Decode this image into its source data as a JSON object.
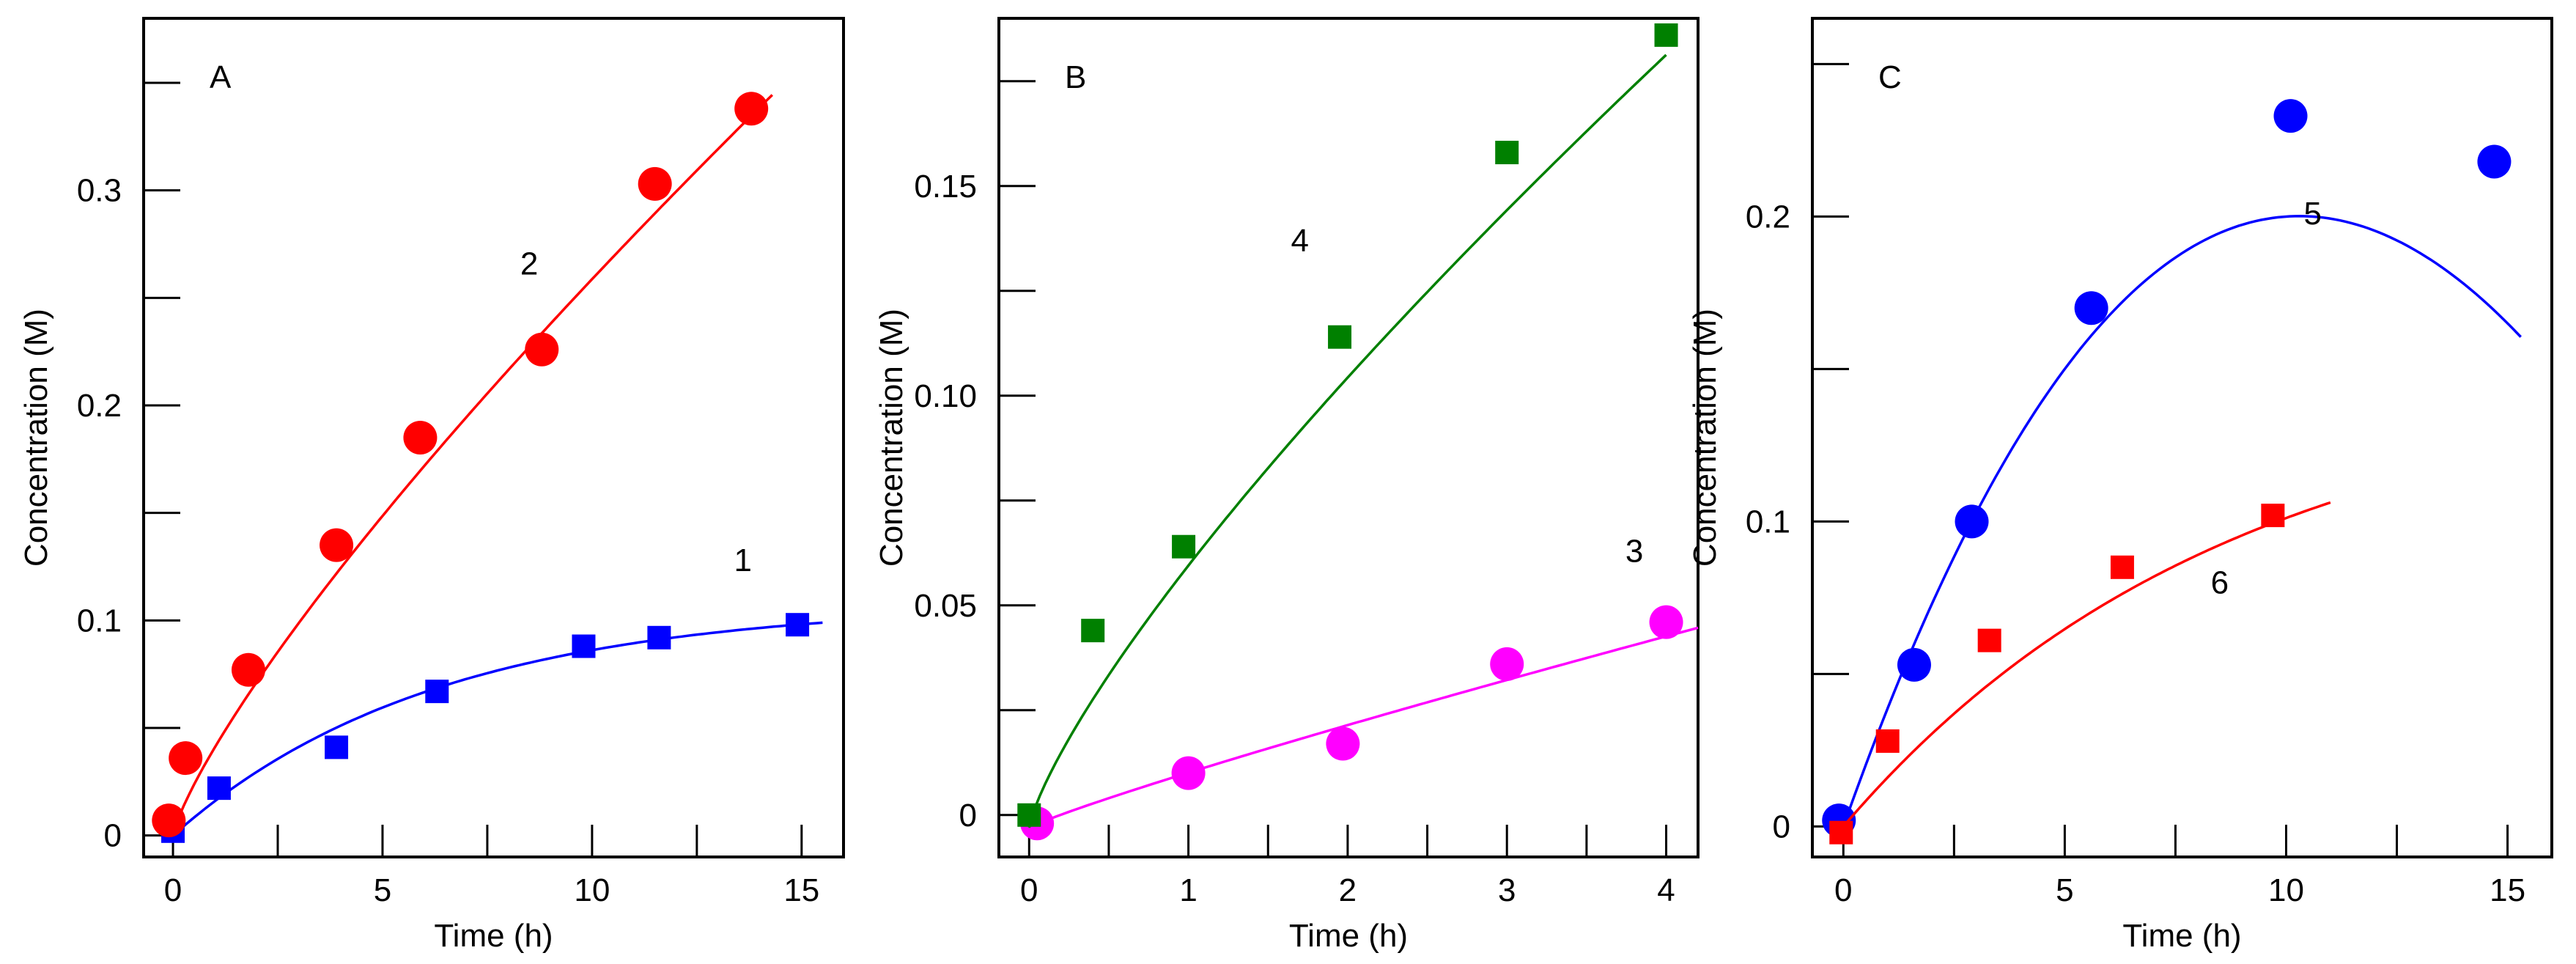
{
  "chart_data": [
    {
      "type": "scatter",
      "panel": "A",
      "xlabel": "Time (h)",
      "ylabel": "Concentration  (M)",
      "xlim": [
        -0.7,
        16
      ],
      "ylim": [
        -0.01,
        0.38
      ],
      "xticks": [
        0,
        5,
        10,
        15
      ],
      "xtick_labels": [
        "0",
        "5",
        "10",
        "15"
      ],
      "yticks": [
        0,
        0.1,
        0.2,
        0.3
      ],
      "ytick_labels": [
        "0",
        "0.1",
        "0.2",
        "0.3"
      ],
      "series": [
        {
          "name": "1",
          "label_at": [
            13.6,
            0.128
          ],
          "color": "#0000ff",
          "marker": "square",
          "x": [
            0.0,
            1.1,
            3.9,
            6.3,
            9.8,
            11.6,
            14.9
          ],
          "y": [
            0.002,
            0.022,
            0.041,
            0.067,
            0.088,
            0.092,
            0.098
          ],
          "fit": {
            "model": "saturation",
            "params": [
              0.108,
              0.16
            ],
            "range": [
              0,
              15.5
            ]
          }
        },
        {
          "name": "2",
          "label_at": [
            8.5,
            0.266
          ],
          "color": "#ff0000",
          "marker": "circle",
          "x": [
            -0.1,
            0.3,
            1.8,
            3.9,
            5.9,
            8.8,
            11.5,
            13.8
          ],
          "y": [
            0.007,
            0.036,
            0.077,
            0.135,
            0.185,
            0.226,
            0.303,
            0.338
          ],
          "fit": {
            "model": "power",
            "params": [
              0.0,
              0.041,
              0.8
            ],
            "range": [
              -0.1,
              14.3
            ]
          }
        }
      ]
    },
    {
      "type": "scatter",
      "panel": "B",
      "xlabel": "Time (h)",
      "ylabel": "Concentration  (M)",
      "xlim": [
        -0.19,
        4.2
      ],
      "ylim": [
        -0.01,
        0.19
      ],
      "xticks": [
        0,
        1,
        2,
        3,
        4
      ],
      "xtick_labels": [
        "0",
        "1",
        "2",
        "3",
        "4"
      ],
      "yticks": [
        0,
        0.05,
        0.1,
        0.15
      ],
      "ytick_labels": [
        "0",
        "0.05",
        "0.10",
        "0.15"
      ],
      "series": [
        {
          "name": "3",
          "label_at": [
            3.8,
            0.063
          ],
          "color": "#ff00ff",
          "marker": "circle",
          "x": [
            0.05,
            1.0,
            1.97,
            3.0,
            4.0
          ],
          "y": [
            -0.002,
            0.01,
            0.017,
            0.036,
            0.046
          ],
          "fit": {
            "model": "power",
            "params": [
              -0.003,
              0.0131,
              0.9
            ],
            "range": [
              0.0,
              4.2
            ]
          }
        },
        {
          "name": "4",
          "label_at": [
            1.7,
            0.137
          ],
          "color": "#008000",
          "marker": "square",
          "x": [
            0.0,
            0.4,
            0.97,
            1.95,
            3.0,
            4.0
          ],
          "y": [
            0.0,
            0.044,
            0.064,
            0.114,
            0.158,
            0.186
          ],
          "fit": {
            "model": "power",
            "params": [
              -0.003,
              0.0625,
              0.78
            ],
            "range": [
              0.0,
              4.0
            ]
          }
        }
      ]
    },
    {
      "type": "scatter",
      "panel": "C",
      "xlabel": "Time (h)",
      "ylabel": "Concentration  (M)",
      "xlim": [
        -0.7,
        16
      ],
      "ylim": [
        -0.01,
        0.265
      ],
      "xticks": [
        0,
        5,
        10,
        15
      ],
      "xtick_labels": [
        "0",
        "5",
        "10",
        "15"
      ],
      "yticks": [
        0,
        0.1,
        0.2
      ],
      "ytick_labels": [
        "0",
        "0.1",
        "0.2"
      ],
      "series": [
        {
          "name": "5",
          "label_at": [
            10.6,
            0.201
          ],
          "color": "#0000ff",
          "marker": "circle",
          "x": [
            -0.1,
            1.6,
            2.9,
            5.6,
            10.1,
            14.7
          ],
          "y": [
            0.002,
            0.053,
            0.1,
            0.17,
            0.233,
            0.218
          ],
          "fit": {
            "model": "cubic",
            "params": [
              0.0,
              0.041,
              -0.0023,
              2e-05
            ],
            "range": [
              0,
              15.3
            ]
          }
        },
        {
          "name": "6",
          "label_at": [
            8.5,
            0.08
          ],
          "color": "#ff0000",
          "marker": "square",
          "x": [
            -0.05,
            1.0,
            3.3,
            6.3,
            9.7
          ],
          "y": [
            -0.002,
            0.028,
            0.061,
            0.085,
            0.102
          ],
          "fit": {
            "model": "saturation",
            "params": [
              0.148,
              0.115
            ],
            "range": [
              0,
              11.0
            ]
          }
        }
      ]
    }
  ]
}
